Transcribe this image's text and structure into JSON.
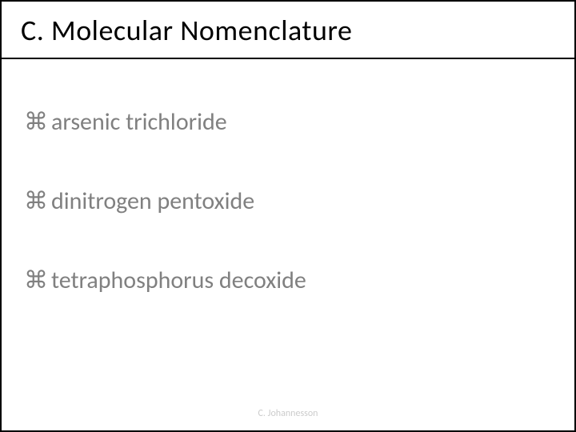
{
  "slide": {
    "title": "C.  Molecular Nomenclature",
    "title_fontsize": 36,
    "title_color": "#000000",
    "border_color": "#000000",
    "background_color": "#ffffff",
    "bullets": [
      {
        "symbol": "⌘",
        "text": "arsenic trichloride"
      },
      {
        "symbol": "⌘",
        "text": "dinitrogen pentoxide"
      },
      {
        "symbol": "⌘",
        "text": "tetraphosphorus decoxide"
      }
    ],
    "bullet_text_color": "#808080",
    "bullet_symbol_color": "#808080",
    "bullet_fontsize": 30,
    "footer": "C. Johannesson",
    "footer_color": "#cccccc",
    "footer_fontsize": 12
  }
}
